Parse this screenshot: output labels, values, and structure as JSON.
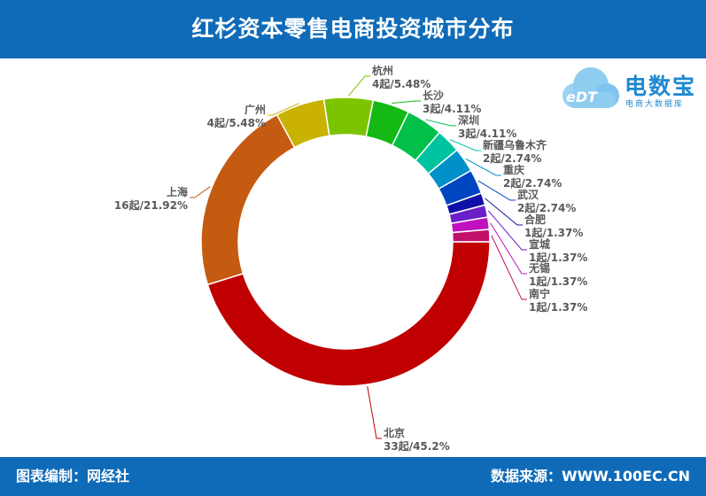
{
  "header": {
    "title": "红杉资本零售电商投资城市分布"
  },
  "footer": {
    "credit": "图表编制：网经社",
    "source": "数据来源：WWW.100EC.CN"
  },
  "logo": {
    "text": "电数宝",
    "subtitle": "电商大数据库",
    "mark": "eDT",
    "icon": "cloud-logo-icon"
  },
  "chart_data": {
    "type": "pie",
    "style": "donut",
    "slices": [
      {
        "name": "北京",
        "label": "33起/45.2%",
        "value": 33,
        "percent": 45.2,
        "color": "#C00000"
      },
      {
        "name": "上海",
        "label": "16起/21.92%",
        "value": 16,
        "percent": 21.92,
        "color": "#C55A11"
      },
      {
        "name": "广州",
        "label": "4起/5.48%",
        "value": 4,
        "percent": 5.48,
        "color": "#C9B200"
      },
      {
        "name": "杭州",
        "label": "4起/5.48%",
        "value": 4,
        "percent": 5.48,
        "color": "#7DC400"
      },
      {
        "name": "长沙",
        "label": "3起/4.11%",
        "value": 3,
        "percent": 4.11,
        "color": "#14B914"
      },
      {
        "name": "深圳",
        "label": "3起/4.11%",
        "value": 3,
        "percent": 4.11,
        "color": "#00C04A"
      },
      {
        "name": "新疆乌鲁木齐",
        "label": "2起/2.74%",
        "value": 2,
        "percent": 2.74,
        "color": "#00C4A0"
      },
      {
        "name": "重庆",
        "label": "2起/2.74%",
        "value": 2,
        "percent": 2.74,
        "color": "#0090C8"
      },
      {
        "name": "武汉",
        "label": "2起/2.74%",
        "value": 2,
        "percent": 2.74,
        "color": "#0046C0"
      },
      {
        "name": "合肥",
        "label": "1起/1.37%",
        "value": 1,
        "percent": 1.37,
        "color": "#1010A8"
      },
      {
        "name": "宣城",
        "label": "1起/1.37%",
        "value": 1,
        "percent": 1.37,
        "color": "#6A1FC8"
      },
      {
        "name": "无锡",
        "label": "1起/1.37%",
        "value": 1,
        "percent": 1.37,
        "color": "#C010C0"
      },
      {
        "name": "南宁",
        "label": "1起/1.37%",
        "value": 1,
        "percent": 1.37,
        "color": "#C0106A"
      }
    ]
  }
}
